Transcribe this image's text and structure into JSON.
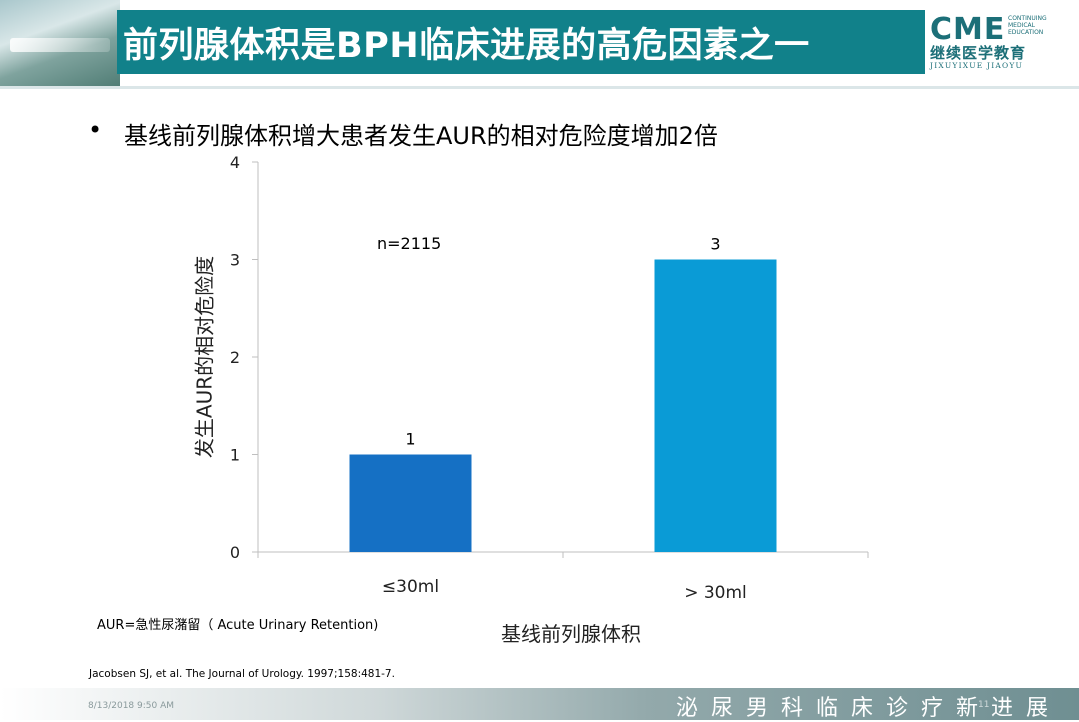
{
  "slide": {
    "title": "前列腺体积是BPH临床进展的高危因素之一",
    "bullet": "基线前列腺体积增大患者发生AUR的相对危险度增加2倍",
    "bullet_marker": "•",
    "annotation": "n=2115",
    "footnote": "AUR=急性尿潴留（ Acute Urinary Retention)",
    "reference": "Jacobsen SJ, et al. The Journal of Urology. 1997;158:481-7.",
    "date": "8/13/2018 9:50 AM",
    "page_number": "11",
    "slogan": "泌尿男科临床诊疗新进展"
  },
  "logo": {
    "main": "CME",
    "small_lines": [
      "CONTINUING",
      "MEDICAL",
      "EDUCATION"
    ],
    "chinese": "继续医学教育",
    "pinyin": "JIXUYIXUE JIAOYU"
  },
  "chart_data": {
    "type": "bar",
    "categories": [
      "≤30ml",
      "> 30ml"
    ],
    "values": [
      1,
      3
    ],
    "data_labels": [
      "1",
      "3"
    ],
    "colors": [
      "#1570c4",
      "#0a9bd6"
    ],
    "xlabel": "基线前列腺体积",
    "ylabel": "发生AUR的相对危险度",
    "ylim": [
      0,
      4
    ],
    "yticks": [
      "0",
      "1",
      "2",
      "3",
      "4"
    ],
    "grid": false,
    "legend": "none"
  }
}
